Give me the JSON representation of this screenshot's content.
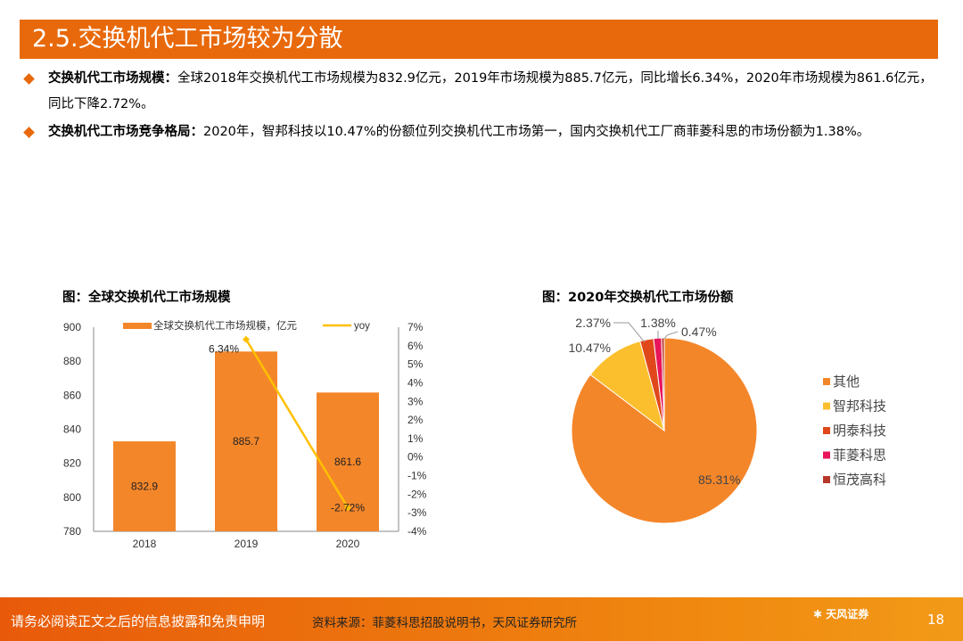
{
  "title": "2.5.交换机代工市场较为分散",
  "bullets": [
    {
      "label": "交换机代工市场规模：",
      "text": "全球2018年交换机代工市场规模为832.9亿元，2019年市场规模为885.7亿元，同比增长6.34%，2020年市场规模为861.6亿元，同比下降2.72%。"
    },
    {
      "label": "交换机代工市场竞争格局：",
      "text": "2020年，智邦科技以10.47%的份额位列交换机代工市场第一，国内交换机代工厂商菲菱科思的市场份额为1.38%。"
    }
  ],
  "chart_data": [
    {
      "type": "bar",
      "caption": "图：全球交换机代工市场规模",
      "categories": [
        "2018",
        "2019",
        "2020"
      ],
      "series": [
        {
          "name": "全球交换机代工市场规模，亿元",
          "type": "bar",
          "values": [
            832.9,
            885.7,
            861.6
          ],
          "labels": [
            "832.9",
            "885.7",
            "861.6"
          ],
          "color": "#F4862A",
          "axis": "left"
        },
        {
          "name": "yoy",
          "type": "line",
          "values": [
            null,
            6.34,
            -2.72
          ],
          "labels": [
            "",
            "6.34%",
            "-2.72%"
          ],
          "color": "#FFC000",
          "axis": "right"
        }
      ],
      "ylim": [
        780,
        900
      ],
      "yticks": [
        "900",
        "880",
        "860",
        "840",
        "820",
        "800",
        "780"
      ],
      "y2lim": [
        -4,
        7
      ],
      "y2ticks": [
        "7%",
        "6%",
        "5%",
        "4%",
        "3%",
        "2%",
        "1%",
        "0%",
        "-1%",
        "-2%",
        "-3%",
        "-4%"
      ]
    },
    {
      "type": "pie",
      "caption": "图：2020年交换机代工市场份额",
      "legend_position": "right",
      "slices": [
        {
          "name": "其他",
          "value": 85.31,
          "label": "85.31%",
          "color": "#F4862A"
        },
        {
          "name": "智邦科技",
          "value": 10.47,
          "label": "10.47%",
          "color": "#FBBF2D"
        },
        {
          "name": "明泰科技",
          "value": 2.37,
          "label": "2.37%",
          "color": "#E0481C"
        },
        {
          "name": "菲菱科思",
          "value": 1.38,
          "label": "1.38%",
          "color": "#E8155A"
        },
        {
          "name": "恒茂高科",
          "value": 0.47,
          "label": "0.47%",
          "color": "#B8362A"
        }
      ]
    }
  ],
  "footer": {
    "disclaimer": "请务必阅读正文之后的信息披露和免责申明",
    "source": "资料来源：菲菱科思招股说明书，天风证券研究所",
    "logo": "天风证券",
    "page": "18"
  }
}
